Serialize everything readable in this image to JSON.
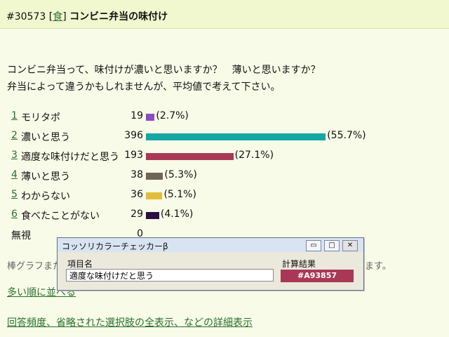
{
  "header": {
    "id": "#30573",
    "cat_l": "[",
    "category": "食",
    "cat_r": "]",
    "title": "コンビニ弁当の味付け"
  },
  "question": {
    "line1": "コンビニ弁当って、味付けが濃いと思いますか？　薄いと思いますか？",
    "line2": "弁当によって違うかもしれませんが、平均値で考えて下さい。"
  },
  "poll": {
    "options": [
      {
        "num": "1",
        "label": "モリタポ",
        "count": "19",
        "percent": 2.7,
        "percent_text": "(2.7%)",
        "color": "#8a4cc0"
      },
      {
        "num": "2",
        "label": "濃いと思う",
        "count": "396",
        "percent": 55.7,
        "percent_text": "(55.7%)",
        "color": "#16a7a5"
      },
      {
        "num": "3",
        "label": "適度な味付けだと思う",
        "count": "193",
        "percent": 27.1,
        "percent_text": "(27.1%)",
        "color": "#a93857"
      },
      {
        "num": "4",
        "label": "薄いと思う",
        "count": "38",
        "percent": 5.3,
        "percent_text": "(5.3%)",
        "color": "#6f6458"
      },
      {
        "num": "5",
        "label": "わからない",
        "count": "36",
        "percent": 5.1,
        "percent_text": "(5.1%)",
        "color": "#e2bd3a"
      },
      {
        "num": "6",
        "label": "食べたことがない",
        "count": "29",
        "percent": 4.1,
        "percent_text": "(4.1%)",
        "color": "#2b1040"
      }
    ],
    "none": {
      "label": "無視",
      "count": "0"
    }
  },
  "behind": {
    "left_text": "棒グラフまた",
    "right_text": "ます。"
  },
  "links": {
    "sort": "多い順に並べる",
    "details": "回答頻度、省略された選択肢の全表示、などの詳細表示"
  },
  "dialog": {
    "title": "コッソリカラーチェッカーβ",
    "min": "▭",
    "max": "□",
    "close": "✕",
    "item_label": "項目名",
    "item_value": "適度な味付けだと思う",
    "result_label": "計算結果",
    "result_value": "#A93857"
  }
}
